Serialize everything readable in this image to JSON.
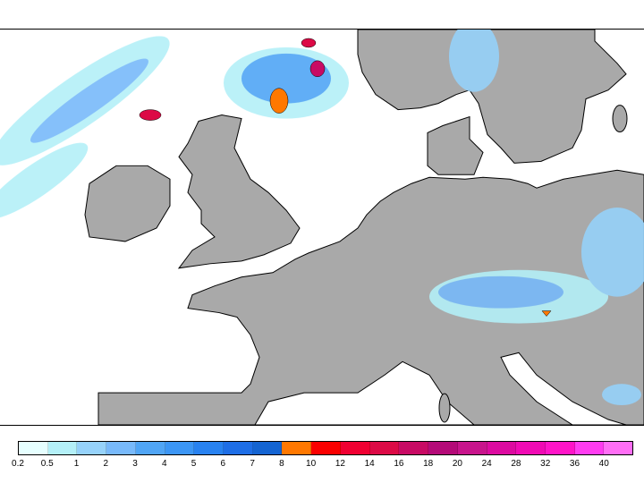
{
  "map": {
    "land_color": "#a9a9a9",
    "sea_color": "#ffffff",
    "coast_color": "#000000"
  },
  "legend": {
    "labels": [
      "0.2",
      "0.5",
      "1",
      "2",
      "3",
      "4",
      "5",
      "6",
      "7",
      "8",
      "10",
      "12",
      "14",
      "16",
      "18",
      "20",
      "24",
      "28",
      "32",
      "36",
      "40"
    ],
    "colors": [
      "#e6ffff",
      "#b4f0f8",
      "#96d2fa",
      "#78b9fa",
      "#50a5f5",
      "#3c96f5",
      "#2882f0",
      "#1e6ee6",
      "#1464d2",
      "#ff7800",
      "#fa0000",
      "#f00032",
      "#dc0a46",
      "#c80a64",
      "#b40a78",
      "#c8148c",
      "#dc0aa0",
      "#f00ab4",
      "#ff14c8",
      "#ff3cf0",
      "#ff6ef5"
    ]
  }
}
